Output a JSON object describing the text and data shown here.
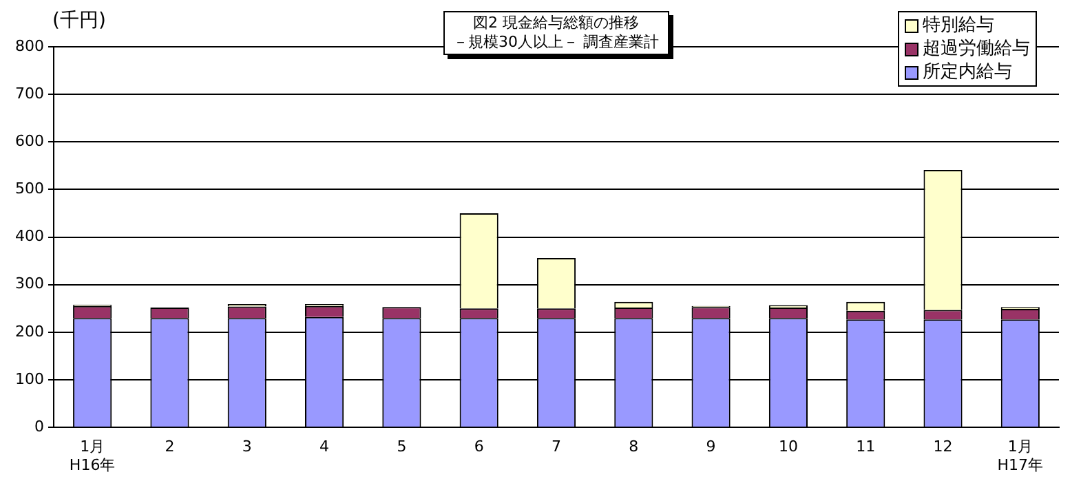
{
  "chart_data": {
    "type": "bar",
    "title": "図2 現金給与総額の推移",
    "subtitle": "－規模30人以上－ 調査産業計",
    "ylabel": "(千円)",
    "categories": [
      "1月\nH16年",
      "2",
      "3",
      "4",
      "5",
      "6",
      "7",
      "8",
      "9",
      "10",
      "11",
      "12",
      "1月\nH17年"
    ],
    "stacked": true,
    "series": [
      {
        "name": "所定内給与",
        "color": "#9999ff",
        "values": [
          230,
          230,
          230,
          232,
          230,
          230,
          230,
          230,
          230,
          230,
          227,
          227,
          227
        ]
      },
      {
        "name": "超過労働給与",
        "color": "#993366",
        "values": [
          25,
          22,
          24,
          23,
          23,
          20,
          20,
          22,
          23,
          22,
          18,
          20,
          22
        ]
      },
      {
        "name": "特別給与",
        "color": "#ffffcc",
        "values": [
          3,
          0,
          5,
          4,
          0,
          200,
          106,
          12,
          2,
          5,
          19,
          294,
          4
        ]
      }
    ],
    "ylim": [
      0,
      800
    ],
    "yticks": [
      0,
      100,
      200,
      300,
      400,
      500,
      600,
      700,
      800
    ],
    "grid": "y",
    "legend": "top right"
  }
}
